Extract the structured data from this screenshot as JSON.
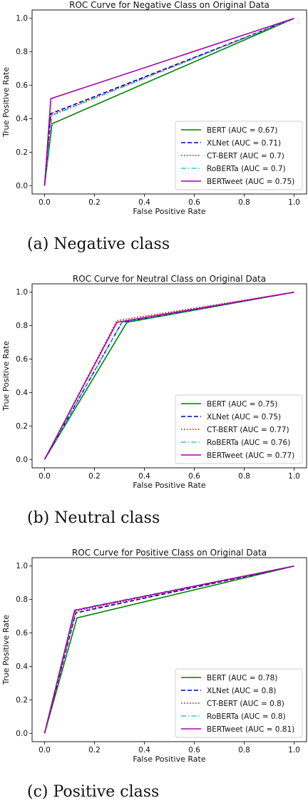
{
  "chart_data": [
    {
      "type": "line",
      "title": "ROC Curve for Negative Class on Original Data",
      "xlabel": "False Positive Rate",
      "ylabel": "True Positive Rate",
      "xlim": [
        -0.05,
        1.05
      ],
      "ylim": [
        -0.05,
        1.05
      ],
      "xticks": [
        "0.0",
        "0.2",
        "0.4",
        "0.6",
        "0.8",
        "1.0"
      ],
      "yticks": [
        "0.0",
        "0.2",
        "0.4",
        "0.6",
        "0.8",
        "1.0"
      ],
      "grid": false,
      "legend_position": "lower-right",
      "series": [
        {
          "name": "BERT (AUC = 0.67)",
          "color": "#008000",
          "style": "solid",
          "points": [
            [
              0,
              0
            ],
            [
              0.03,
              0.37
            ],
            [
              1,
              1
            ]
          ]
        },
        {
          "name": "XLNet (AUC = 0.71)",
          "color": "#0000aa",
          "style": "dashed",
          "points": [
            [
              0,
              0
            ],
            [
              0.025,
              0.43
            ],
            [
              1,
              1
            ]
          ]
        },
        {
          "name": "CT-BERT (AUC = 0.7)",
          "color": "#cc0000",
          "style": "dotted",
          "points": [
            [
              0,
              0
            ],
            [
              0.025,
              0.42
            ],
            [
              1,
              1
            ]
          ]
        },
        {
          "name": "RoBERTa (AUC = 0.7)",
          "color": "#00bbcc",
          "style": "dashdot",
          "points": [
            [
              0,
              0
            ],
            [
              0.03,
              0.42
            ],
            [
              1,
              1
            ]
          ]
        },
        {
          "name": "BERTweet (AUC = 0.75)",
          "color": "#aa00aa",
          "style": "solid",
          "points": [
            [
              0,
              0
            ],
            [
              0.025,
              0.52
            ],
            [
              1,
              1
            ]
          ]
        }
      ]
    },
    {
      "type": "line",
      "title": "ROC Curve for Neutral Class on Original Data",
      "xlabel": "False Positive Rate",
      "ylabel": "True Positive Rate",
      "xlim": [
        -0.05,
        1.05
      ],
      "ylim": [
        -0.05,
        1.05
      ],
      "xticks": [
        "0.0",
        "0.2",
        "0.4",
        "0.6",
        "0.8",
        "1.0"
      ],
      "yticks": [
        "0.0",
        "0.2",
        "0.4",
        "0.6",
        "0.8",
        "1.0"
      ],
      "grid": false,
      "legend_position": "lower-right",
      "series": [
        {
          "name": "BERT (AUC = 0.75)",
          "color": "#008000",
          "style": "solid",
          "points": [
            [
              0,
              0
            ],
            [
              0.33,
              0.82
            ],
            [
              1,
              1
            ]
          ]
        },
        {
          "name": "XLNet (AUC = 0.75)",
          "color": "#0000aa",
          "style": "dashed",
          "points": [
            [
              0,
              0
            ],
            [
              0.31,
              0.82
            ],
            [
              1,
              1
            ]
          ]
        },
        {
          "name": "CT-BERT (AUC = 0.77)",
          "color": "#cc0000",
          "style": "dotted",
          "points": [
            [
              0,
              0
            ],
            [
              0.29,
              0.83
            ],
            [
              1,
              1
            ]
          ]
        },
        {
          "name": "RoBERTa (AUC = 0.76)",
          "color": "#00bbcc",
          "style": "dashdot",
          "points": [
            [
              0,
              0
            ],
            [
              0.31,
              0.82
            ],
            [
              1,
              1
            ]
          ]
        },
        {
          "name": "BERTweet (AUC = 0.77)",
          "color": "#aa00aa",
          "style": "solid",
          "points": [
            [
              0,
              0
            ],
            [
              0.29,
              0.82
            ],
            [
              1,
              1
            ]
          ]
        }
      ]
    },
    {
      "type": "line",
      "title": "ROC Curve for Positive Class on Original Data",
      "xlabel": "False Positive Rate",
      "ylabel": "True Positive Rate",
      "xlim": [
        -0.05,
        1.05
      ],
      "ylim": [
        -0.05,
        1.05
      ],
      "xticks": [
        "0.0",
        "0.2",
        "0.4",
        "0.6",
        "0.8",
        "1.0"
      ],
      "yticks": [
        "0.0",
        "0.2",
        "0.4",
        "0.6",
        "0.8",
        "1.0"
      ],
      "grid": false,
      "legend_position": "lower-right",
      "series": [
        {
          "name": "BERT (AUC = 0.78)",
          "color": "#008000",
          "style": "solid",
          "points": [
            [
              0,
              0
            ],
            [
              0.13,
              0.69
            ],
            [
              1,
              1
            ]
          ]
        },
        {
          "name": "XLNet (AUC = 0.8)",
          "color": "#0000aa",
          "style": "dashed",
          "points": [
            [
              0,
              0
            ],
            [
              0.125,
              0.72
            ],
            [
              1,
              1
            ]
          ]
        },
        {
          "name": "CT-BERT (AUC = 0.8)",
          "color": "#cc0000",
          "style": "dotted",
          "points": [
            [
              0,
              0
            ],
            [
              0.125,
              0.73
            ],
            [
              1,
              1
            ]
          ]
        },
        {
          "name": "RoBERTa (AUC = 0.8)",
          "color": "#00bbcc",
          "style": "dashdot",
          "points": [
            [
              0,
              0
            ],
            [
              0.125,
              0.74
            ],
            [
              1,
              1
            ]
          ]
        },
        {
          "name": "BERTweet (AUC = 0.81)",
          "color": "#aa00aa",
          "style": "solid",
          "points": [
            [
              0,
              0
            ],
            [
              0.12,
              0.735
            ],
            [
              1,
              1
            ]
          ]
        }
      ]
    }
  ],
  "captions": [
    "(a) Negative class",
    "(b) Neutral class",
    "(c) Positive class"
  ]
}
